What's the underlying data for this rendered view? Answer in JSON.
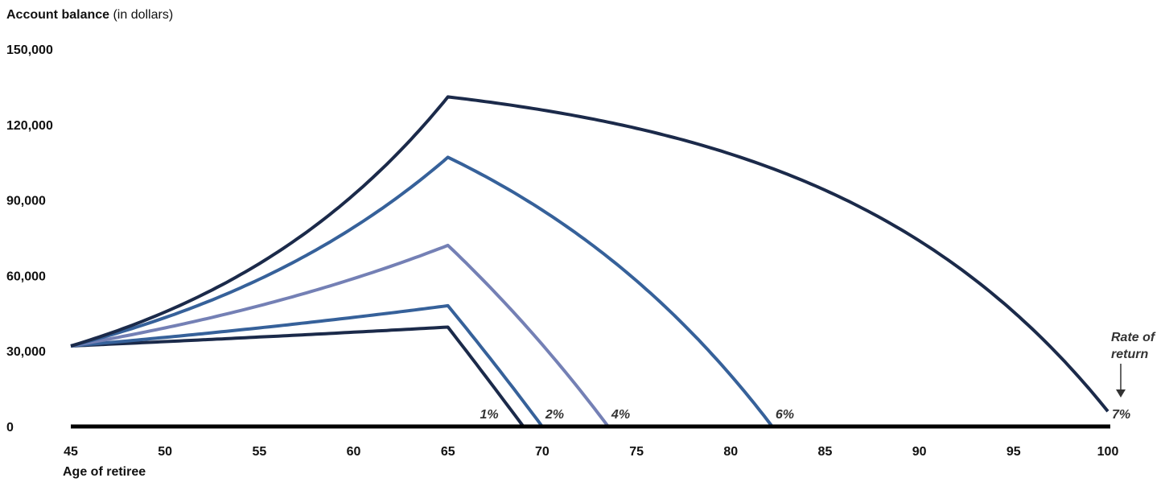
{
  "chart_data": {
    "type": "line",
    "ylabel_bold": "Account balance",
    "ylabel_rest": " (in dollars)",
    "xlabel": "Age of retiree",
    "ylim": [
      0,
      150000
    ],
    "xlim": [
      45,
      100
    ],
    "y_ticks": [
      "0",
      "30,000",
      "60,000",
      "90,000",
      "120,000",
      "150,000"
    ],
    "y_tick_values": [
      0,
      30000,
      60000,
      90000,
      120000,
      150000
    ],
    "x_ticks": [
      "45",
      "50",
      "55",
      "60",
      "65",
      "70",
      "75",
      "80",
      "85",
      "90",
      "95",
      "100"
    ],
    "x_tick_values": [
      45,
      50,
      55,
      60,
      65,
      70,
      75,
      80,
      85,
      90,
      95,
      100
    ],
    "legend_title_line1": "Rate of",
    "legend_title_line2": "return",
    "grid": false,
    "series": [
      {
        "name": "1%",
        "color": "#1b2a4a",
        "rate": 0.01,
        "start": 32000,
        "peak": 39500,
        "depletion_age": 69
      },
      {
        "name": "2%",
        "color": "#36619a",
        "rate": 0.02,
        "start": 32000,
        "peak": 48000,
        "depletion_age": 70
      },
      {
        "name": "4%",
        "color": "#7480b5",
        "rate": 0.04,
        "start": 32000,
        "peak": 72000,
        "depletion_age": 73.5
      },
      {
        "name": "6%",
        "color": "#36619a",
        "rate": 0.06,
        "start": 32000,
        "peak": 107000,
        "depletion_age": 82.2
      },
      {
        "name": "7%",
        "color": "#1b2a4a",
        "rate": 0.07,
        "start": 32000,
        "peak": 131000,
        "depletion_age": 100,
        "end_value": 6000
      }
    ]
  }
}
